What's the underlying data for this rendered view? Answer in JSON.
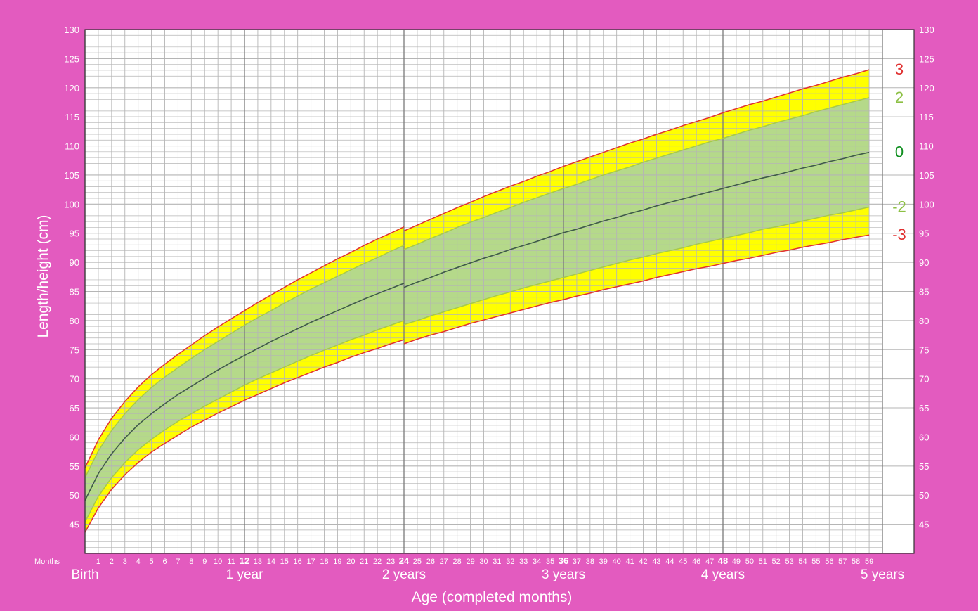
{
  "colors": {
    "page_bg": "#e35bbf",
    "plot_bg": "#ffffff",
    "grid_minor": "#b5b5b5",
    "grid_major": "#7a7a7a",
    "band_outer": "#ffff00",
    "band_inner": "#b5d98a",
    "line_sd3": "#e03030",
    "line_sd2": "#a6c94a",
    "line_median": "#3f5a4a",
    "label_sd3": "#e03030",
    "label_sd2": "#8cc043",
    "label_median": "#0f8f1f",
    "axis_text": "#ffffff",
    "tick_text": "#ffffff"
  },
  "chart_data": {
    "type": "line",
    "title": "",
    "xlabel": "Age (completed months)",
    "ylabel": "Length/height (cm)",
    "xlim": [
      0,
      60
    ],
    "ylim": [
      40,
      130
    ],
    "y_ticks": [
      45,
      50,
      55,
      60,
      65,
      70,
      75,
      80,
      85,
      90,
      95,
      100,
      105,
      110,
      115,
      120,
      125,
      130
    ],
    "y_ticks_left_extra": [
      130
    ],
    "months_label": "Months",
    "x_month_ticks": [
      "1",
      "2",
      "3",
      "4",
      "5",
      "6",
      "7",
      "8",
      "9",
      "10",
      "11",
      "12",
      "13",
      "14",
      "15",
      "16",
      "17",
      "18",
      "19",
      "20",
      "21",
      "22",
      "23",
      "24",
      "25",
      "26",
      "27",
      "28",
      "29",
      "30",
      "31",
      "32",
      "33",
      "34",
      "35",
      "36",
      "37",
      "38",
      "39",
      "40",
      "41",
      "42",
      "43",
      "44",
      "45",
      "46",
      "47",
      "48",
      "49",
      "50",
      "51",
      "52",
      "53",
      "54",
      "55",
      "56",
      "57",
      "58",
      "59"
    ],
    "x_bold_months": [
      12,
      24,
      36,
      48
    ],
    "year_labels": [
      {
        "month": 0,
        "label": "Birth"
      },
      {
        "month": 12,
        "label": "1 year"
      },
      {
        "month": 24,
        "label": "2 years"
      },
      {
        "month": 36,
        "label": "3 years"
      },
      {
        "month": 48,
        "label": "4 years"
      },
      {
        "month": 60,
        "label": "5 years"
      }
    ],
    "grid": true,
    "x": [
      0,
      1,
      2,
      3,
      4,
      5,
      6,
      7,
      8,
      9,
      10,
      11,
      12,
      13,
      14,
      15,
      16,
      17,
      18,
      19,
      20,
      21,
      22,
      23,
      24,
      25,
      26,
      27,
      28,
      29,
      30,
      31,
      32,
      33,
      34,
      35,
      36,
      37,
      38,
      39,
      40,
      41,
      42,
      43,
      44,
      45,
      46,
      47,
      48,
      49,
      50,
      51,
      52,
      53,
      54,
      55,
      56,
      57,
      58,
      59,
      60
    ],
    "break_at": 24,
    "series": [
      {
        "name": "3",
        "role": "sd3",
        "values": [
          54.7,
          59.5,
          63.2,
          66.1,
          68.6,
          70.7,
          72.5,
          74.2,
          75.8,
          77.4,
          78.9,
          80.3,
          81.7,
          83.1,
          84.4,
          85.7,
          87.0,
          88.2,
          89.4,
          90.6,
          91.7,
          92.9,
          94.0,
          95.0,
          96.1,
          95.4,
          96.4,
          97.4,
          98.4,
          99.4,
          100.3,
          101.3,
          102.2,
          103.1,
          103.9,
          104.8,
          105.6,
          106.5,
          107.3,
          108.1,
          108.9,
          109.7,
          110.5,
          111.2,
          112.0,
          112.7,
          113.5,
          114.2,
          114.9,
          115.7,
          116.4,
          117.1,
          117.7,
          118.4,
          119.1,
          119.8,
          120.4,
          121.1,
          121.8,
          122.4,
          123.1
        ]
      },
      {
        "name": "2",
        "role": "sd2",
        "values": [
          53.0,
          57.6,
          61.1,
          64.0,
          66.4,
          68.5,
          70.3,
          71.9,
          73.5,
          75.0,
          76.4,
          77.8,
          79.2,
          80.5,
          81.7,
          83.0,
          84.2,
          85.4,
          86.5,
          87.6,
          88.7,
          89.8,
          90.8,
          91.9,
          92.9,
          92.2,
          93.1,
          94.1,
          95.0,
          96.0,
          96.9,
          97.7,
          98.6,
          99.4,
          100.3,
          101.1,
          101.9,
          102.7,
          103.4,
          104.2,
          105.0,
          105.7,
          106.4,
          107.2,
          107.9,
          108.6,
          109.3,
          110.0,
          110.7,
          111.3,
          112.0,
          112.7,
          113.3,
          114.0,
          114.6,
          115.2,
          115.9,
          116.5,
          117.1,
          117.7,
          118.3
        ]
      },
      {
        "name": "0",
        "role": "median",
        "values": [
          49.1,
          53.7,
          57.1,
          59.8,
          62.1,
          64.0,
          65.7,
          67.3,
          68.7,
          70.1,
          71.5,
          72.8,
          74.0,
          75.2,
          76.4,
          77.5,
          78.6,
          79.7,
          80.7,
          81.7,
          82.7,
          83.7,
          84.6,
          85.5,
          86.4,
          85.7,
          86.6,
          87.4,
          88.3,
          89.1,
          89.9,
          90.7,
          91.4,
          92.2,
          92.9,
          93.6,
          94.4,
          95.1,
          95.7,
          96.4,
          97.1,
          97.7,
          98.4,
          99.0,
          99.7,
          100.3,
          100.9,
          101.5,
          102.1,
          102.7,
          103.3,
          103.9,
          104.5,
          105.0,
          105.6,
          106.2,
          106.7,
          107.3,
          107.8,
          108.4,
          108.9
        ]
      },
      {
        "name": "-2",
        "role": "sd2",
        "values": [
          45.4,
          49.8,
          53.0,
          55.6,
          57.8,
          59.6,
          61.2,
          62.7,
          64.0,
          65.3,
          66.5,
          67.7,
          68.9,
          70.0,
          71.0,
          72.0,
          73.0,
          74.0,
          74.9,
          75.8,
          76.7,
          77.5,
          78.4,
          79.2,
          80.0,
          79.3,
          80.0,
          80.8,
          81.5,
          82.2,
          82.9,
          83.6,
          84.3,
          84.9,
          85.6,
          86.2,
          86.8,
          87.4,
          88.0,
          88.6,
          89.2,
          89.8,
          90.4,
          90.9,
          91.5,
          92.0,
          92.5,
          93.1,
          93.6,
          94.1,
          94.6,
          95.1,
          95.7,
          96.1,
          96.6,
          97.1,
          97.6,
          98.1,
          98.5,
          99.0,
          99.5
        ]
      },
      {
        "name": "-3",
        "role": "sd3",
        "values": [
          43.6,
          47.8,
          51.0,
          53.5,
          55.6,
          57.4,
          58.9,
          60.3,
          61.7,
          62.9,
          64.1,
          65.2,
          66.3,
          67.3,
          68.3,
          69.3,
          70.2,
          71.1,
          72.0,
          72.8,
          73.7,
          74.5,
          75.2,
          76.0,
          76.7,
          76.0,
          76.8,
          77.5,
          78.1,
          78.8,
          79.5,
          80.1,
          80.7,
          81.3,
          81.9,
          82.5,
          83.1,
          83.6,
          84.2,
          84.7,
          85.3,
          85.8,
          86.3,
          86.8,
          87.4,
          87.9,
          88.4,
          88.9,
          89.3,
          89.8,
          90.3,
          90.7,
          91.2,
          91.7,
          92.1,
          92.6,
          93.0,
          93.4,
          93.9,
          94.3,
          94.7
        ]
      }
    ],
    "legend": "right-side labels"
  }
}
